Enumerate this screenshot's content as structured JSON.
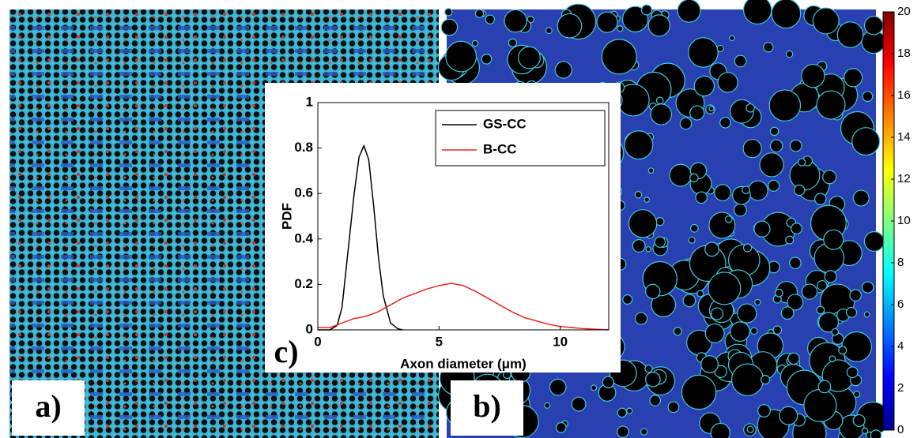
{
  "panels": {
    "a": "a)",
    "b": "b)"
  },
  "chart_data": [
    {
      "type": "line",
      "panel_label": "c)",
      "xlabel": "Axon diameter (μm)",
      "ylabel": "PDF",
      "xlim": [
        0,
        12
      ],
      "xticks": [
        0,
        5,
        10
      ],
      "ylim": [
        0,
        1
      ],
      "yticks": [
        0,
        0.2,
        0.4,
        0.6,
        0.8,
        1
      ],
      "legend": "upper right",
      "series": [
        {
          "name": "GS-CC",
          "color": "#000000",
          "x": [
            0,
            0.5,
            0.8,
            1.0,
            1.2,
            1.5,
            1.7,
            1.9,
            2.1,
            2.3,
            2.5,
            2.7,
            3.0,
            3.3,
            3.5
          ],
          "values": [
            0,
            0,
            0.02,
            0.1,
            0.3,
            0.6,
            0.76,
            0.81,
            0.75,
            0.55,
            0.32,
            0.15,
            0.03,
            0.005,
            0
          ]
        },
        {
          "name": "B-CC",
          "color": "#e8231c",
          "x": [
            0,
            0.5,
            1,
            1.5,
            2,
            2.5,
            3,
            3.5,
            4,
            4.5,
            5,
            5.5,
            6,
            6.5,
            7,
            7.5,
            8,
            8.5,
            9,
            9.5,
            10,
            10.5,
            11,
            12
          ],
          "values": [
            0.01,
            0.01,
            0.03,
            0.05,
            0.06,
            0.08,
            0.11,
            0.14,
            0.16,
            0.18,
            0.195,
            0.205,
            0.195,
            0.17,
            0.14,
            0.11,
            0.08,
            0.055,
            0.04,
            0.025,
            0.015,
            0.01,
            0.005,
            0
          ]
        }
      ]
    },
    {
      "type": "colorbar",
      "ylim": [
        0,
        20
      ],
      "yticks": [
        0,
        2,
        4,
        6,
        8,
        10,
        12,
        14,
        16,
        18,
        20
      ]
    }
  ]
}
